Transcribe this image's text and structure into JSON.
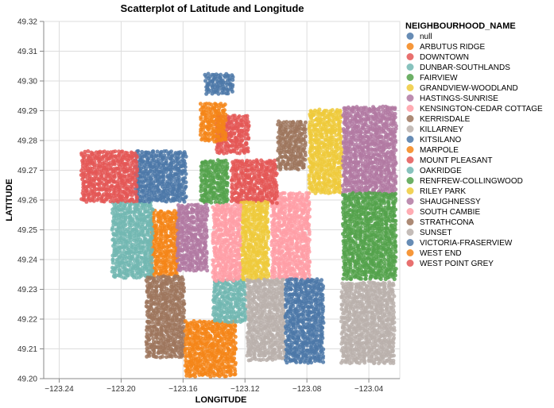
{
  "chart_data": {
    "type": "scatter",
    "title": "Scatterplot of Latitude and Longitude",
    "xlabel": "LONGITUDE",
    "ylabel": "LATITUDE",
    "xlim": [
      -123.25,
      -123.02
    ],
    "ylim": [
      49.2,
      49.32
    ],
    "x_ticks": [
      -123.24,
      -123.2,
      -123.16,
      -123.12,
      -123.08,
      -123.04
    ],
    "x_tick_labels": [
      "−123.24",
      "−123.20",
      "−123.16",
      "−123.12",
      "−123.08",
      "−123.04"
    ],
    "y_ticks": [
      49.2,
      49.21,
      49.22,
      49.23,
      49.24,
      49.25,
      49.26,
      49.27,
      49.28,
      49.29,
      49.3,
      49.31,
      49.32
    ],
    "y_tick_labels": [
      "49.20",
      "49.21",
      "49.22",
      "49.23",
      "49.24",
      "49.25",
      "49.26",
      "49.27",
      "49.28",
      "49.29",
      "49.30",
      "49.31",
      "49.32"
    ],
    "grid": true,
    "legend": {
      "title": "NEIGHBOURHOOD_NAME",
      "position": "right",
      "entries": [
        {
          "name": "null",
          "color": "#4c78a8"
        },
        {
          "name": "ARBUTUS RIDGE",
          "color": "#f58518"
        },
        {
          "name": "DOWNTOWN",
          "color": "#e45756"
        },
        {
          "name": "DUNBAR-SOUTHLANDS",
          "color": "#72b7b2"
        },
        {
          "name": "FAIRVIEW",
          "color": "#54a24b"
        },
        {
          "name": "GRANDVIEW-WOODLAND",
          "color": "#eeca3b"
        },
        {
          "name": "HASTINGS-SUNRISE",
          "color": "#b279a2"
        },
        {
          "name": "KENSINGTON-CEDAR COTTAGE",
          "color": "#ff9da6"
        },
        {
          "name": "KERRISDALE",
          "color": "#9d755d"
        },
        {
          "name": "KILLARNEY",
          "color": "#bab0ac"
        },
        {
          "name": "KITSILANO",
          "color": "#4c78a8"
        },
        {
          "name": "MARPOLE",
          "color": "#f58518"
        },
        {
          "name": "MOUNT PLEASANT",
          "color": "#e45756"
        },
        {
          "name": "OAKRIDGE",
          "color": "#72b7b2"
        },
        {
          "name": "RENFREW-COLLINGWOOD",
          "color": "#54a24b"
        },
        {
          "name": "RILEY PARK",
          "color": "#eeca3b"
        },
        {
          "name": "SHAUGHNESSY",
          "color": "#b279a2"
        },
        {
          "name": "SOUTH CAMBIE",
          "color": "#ff9da6"
        },
        {
          "name": "STRATHCONA",
          "color": "#9d755d"
        },
        {
          "name": "SUNSET",
          "color": "#bab0ac"
        },
        {
          "name": "VICTORIA-FRASERVIEW",
          "color": "#4c78a8"
        },
        {
          "name": "WEST END",
          "color": "#f58518"
        },
        {
          "name": "WEST POINT GREY",
          "color": "#e45756"
        }
      ]
    },
    "regions": [
      {
        "name": "null",
        "color": "#4c78a8",
        "bounds": [
          [
            -123.145,
            49.296
          ],
          [
            -123.128,
            49.296
          ],
          [
            -123.128,
            49.302
          ],
          [
            -123.145,
            49.302
          ]
        ]
      },
      {
        "name": "ARBUTUS RIDGE",
        "color": "#f58518",
        "bounds": [
          [
            -123.18,
            49.234
          ],
          [
            -123.163,
            49.234
          ],
          [
            -123.163,
            49.256
          ],
          [
            -123.18,
            49.256
          ]
        ]
      },
      {
        "name": "DOWNTOWN",
        "color": "#e45756",
        "bounds": [
          [
            -123.138,
            49.276
          ],
          [
            -123.118,
            49.276
          ],
          [
            -123.118,
            49.288
          ],
          [
            -123.138,
            49.288
          ]
        ]
      },
      {
        "name": "DUNBAR-SOUTHLANDS",
        "color": "#72b7b2",
        "bounds": [
          [
            -123.205,
            49.234
          ],
          [
            -123.18,
            49.234
          ],
          [
            -123.18,
            49.259
          ],
          [
            -123.205,
            49.259
          ]
        ]
      },
      {
        "name": "FAIRVIEW",
        "color": "#54a24b",
        "bounds": [
          [
            -123.148,
            49.259
          ],
          [
            -123.13,
            49.259
          ],
          [
            -123.13,
            49.273
          ],
          [
            -123.148,
            49.273
          ]
        ]
      },
      {
        "name": "GRANDVIEW-WOODLAND",
        "color": "#eeca3b",
        "bounds": [
          [
            -123.078,
            49.262
          ],
          [
            -123.057,
            49.262
          ],
          [
            -123.057,
            49.29
          ],
          [
            -123.078,
            49.29
          ]
        ]
      },
      {
        "name": "HASTINGS-SUNRISE",
        "color": "#b279a2",
        "bounds": [
          [
            -123.056,
            49.262
          ],
          [
            -123.023,
            49.262
          ],
          [
            -123.023,
            49.291
          ],
          [
            -123.056,
            49.291
          ]
        ]
      },
      {
        "name": "KENSINGTON-CEDAR COTTAGE",
        "color": "#ff9da6",
        "bounds": [
          [
            -123.102,
            49.233
          ],
          [
            -123.078,
            49.233
          ],
          [
            -123.078,
            49.262
          ],
          [
            -123.102,
            49.262
          ]
        ]
      },
      {
        "name": "KERRISDALE",
        "color": "#9d755d",
        "bounds": [
          [
            -123.183,
            49.207
          ],
          [
            -123.16,
            49.207
          ],
          [
            -123.16,
            49.234
          ],
          [
            -123.183,
            49.234
          ]
        ]
      },
      {
        "name": "KILLARNEY",
        "color": "#bab0ac",
        "bounds": [
          [
            -123.057,
            49.205
          ],
          [
            -123.023,
            49.205
          ],
          [
            -123.023,
            49.232
          ],
          [
            -123.057,
            49.232
          ]
        ]
      },
      {
        "name": "KITSILANO",
        "color": "#4c78a8",
        "bounds": [
          [
            -123.19,
            49.259
          ],
          [
            -123.158,
            49.259
          ],
          [
            -123.158,
            49.276
          ],
          [
            -123.19,
            49.276
          ]
        ]
      },
      {
        "name": "MARPOLE",
        "color": "#f58518",
        "bounds": [
          [
            -123.158,
            49.201
          ],
          [
            -123.126,
            49.201
          ],
          [
            -123.126,
            49.219
          ],
          [
            -123.158,
            49.219
          ]
        ]
      },
      {
        "name": "MOUNT PLEASANT",
        "color": "#e45756",
        "bounds": [
          [
            -123.128,
            49.259
          ],
          [
            -123.1,
            49.259
          ],
          [
            -123.1,
            49.273
          ],
          [
            -123.128,
            49.273
          ]
        ]
      },
      {
        "name": "OAKRIDGE",
        "color": "#72b7b2",
        "bounds": [
          [
            -123.14,
            49.219
          ],
          [
            -123.12,
            49.219
          ],
          [
            -123.12,
            49.233
          ],
          [
            -123.14,
            49.233
          ]
        ]
      },
      {
        "name": "RENFREW-COLLINGWOOD",
        "color": "#54a24b",
        "bounds": [
          [
            -123.056,
            49.233
          ],
          [
            -123.023,
            49.233
          ],
          [
            -123.023,
            49.262
          ],
          [
            -123.056,
            49.262
          ]
        ]
      },
      {
        "name": "RILEY PARK",
        "color": "#eeca3b",
        "bounds": [
          [
            -123.122,
            49.233
          ],
          [
            -123.104,
            49.233
          ],
          [
            -123.104,
            49.259
          ],
          [
            -123.122,
            49.259
          ]
        ]
      },
      {
        "name": "SHAUGHNESSY",
        "color": "#b279a2",
        "bounds": [
          [
            -123.163,
            49.236
          ],
          [
            -123.144,
            49.236
          ],
          [
            -123.144,
            49.258
          ],
          [
            -123.163,
            49.258
          ]
        ]
      },
      {
        "name": "SOUTH CAMBIE",
        "color": "#ff9da6",
        "bounds": [
          [
            -123.14,
            49.233
          ],
          [
            -123.122,
            49.233
          ],
          [
            -123.122,
            49.258
          ],
          [
            -123.14,
            49.258
          ]
        ]
      },
      {
        "name": "STRATHCONA",
        "color": "#9d755d",
        "bounds": [
          [
            -123.098,
            49.27
          ],
          [
            -123.08,
            49.27
          ],
          [
            -123.08,
            49.286
          ],
          [
            -123.098,
            49.286
          ]
        ]
      },
      {
        "name": "SUNSET",
        "color": "#bab0ac",
        "bounds": [
          [
            -123.118,
            49.206
          ],
          [
            -123.094,
            49.206
          ],
          [
            -123.094,
            49.233
          ],
          [
            -123.118,
            49.233
          ]
        ]
      },
      {
        "name": "VICTORIA-FRASERVIEW",
        "color": "#4c78a8",
        "bounds": [
          [
            -123.093,
            49.205
          ],
          [
            -123.069,
            49.205
          ],
          [
            -123.069,
            49.233
          ],
          [
            -123.093,
            49.233
          ]
        ]
      },
      {
        "name": "WEST END",
        "color": "#f58518",
        "bounds": [
          [
            -123.148,
            49.28
          ],
          [
            -123.132,
            49.28
          ],
          [
            -123.132,
            49.292
          ],
          [
            -123.148,
            49.292
          ]
        ]
      },
      {
        "name": "WEST POINT GREY",
        "color": "#e45756",
        "bounds": [
          [
            -123.225,
            49.259
          ],
          [
            -123.19,
            49.259
          ],
          [
            -123.19,
            49.276
          ],
          [
            -123.225,
            49.276
          ]
        ]
      }
    ]
  }
}
